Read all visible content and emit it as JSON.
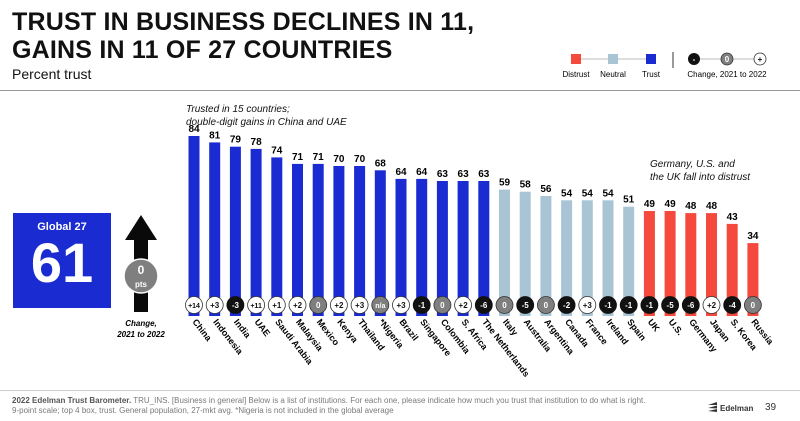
{
  "header": {
    "title_line1": "TRUST IN BUSINESS DECLINES IN 11,",
    "title_line2": "GAINS IN 11 OF 27 COUNTRIES",
    "subtitle": "Percent trust"
  },
  "legend": {
    "distrust": "Distrust",
    "neutral": "Neutral",
    "trust": "Trust",
    "change_label": "Change, 2021 to 2022",
    "change_minus": "-",
    "change_zero": "0",
    "change_plus": "+"
  },
  "global": {
    "label": "Global 27",
    "value": "61",
    "change_value": "0",
    "change_unit": "pts",
    "change_caption_line1": "Change,",
    "change_caption_line2": "2021 to 2022"
  },
  "annotations": {
    "left_line1": "Trusted in 15 countries;",
    "left_line2": "double-digit gains in China and UAE",
    "right_line1": "Germany, U.S. and",
    "right_line2": "the UK fall into distrust"
  },
  "colors": {
    "trust": "#1a2bd1",
    "neutral": "#a9c4d5",
    "distrust": "#f4493c",
    "change_negative": "#111111",
    "change_zero": "#7f7f7f",
    "change_positive": "#ffffff"
  },
  "chart_data": {
    "type": "bar",
    "ylim": [
      0,
      100
    ],
    "categories": [
      "China",
      "Indonesia",
      "India",
      "UAE",
      "Saudi Arabia",
      "Malaysia",
      "Mexico",
      "Kenya",
      "Thailand",
      "*Nigeria",
      "Brazil",
      "Singapore",
      "Colombia",
      "S. Africa",
      "The Netherlands",
      "Italy",
      "Australia",
      "Argentina",
      "Canada",
      "France",
      "Ireland",
      "Spain",
      "UK",
      "U.S.",
      "Germany",
      "Japan",
      "S. Korea",
      "Russia"
    ],
    "values": [
      84,
      81,
      79,
      78,
      74,
      71,
      71,
      70,
      70,
      68,
      64,
      64,
      63,
      63,
      63,
      59,
      58,
      56,
      54,
      54,
      54,
      51,
      49,
      49,
      48,
      48,
      43,
      34
    ],
    "labels": [
      "84",
      "81",
      "79",
      "78",
      "74",
      "71",
      "71",
      "70",
      "70",
      "68",
      "64",
      "64",
      "63",
      "63",
      "63",
      "59",
      "58",
      "56",
      "54",
      "54",
      "54",
      "51",
      "49",
      "49",
      "48",
      "48",
      "43",
      "34"
    ],
    "categories_class": [
      "trust",
      "trust",
      "trust",
      "trust",
      "trust",
      "trust",
      "trust",
      "trust",
      "trust",
      "trust",
      "trust",
      "trust",
      "trust",
      "trust",
      "trust",
      "neutral",
      "neutral",
      "neutral",
      "neutral",
      "neutral",
      "neutral",
      "neutral",
      "distrust",
      "distrust",
      "distrust",
      "distrust",
      "distrust",
      "distrust"
    ],
    "changes": [
      "+14",
      "+3",
      "-3",
      "+11",
      "+1",
      "+2",
      "0",
      "+2",
      "+3",
      "n/a",
      "+3",
      "-1",
      "0",
      "+2",
      "-6",
      "0",
      "-5",
      "0",
      "-2",
      "+3",
      "-1",
      "-1",
      "-1",
      "-5",
      "-6",
      "+2",
      "-4",
      "0"
    ]
  },
  "footer": {
    "source": "2022 Edelman Trust Barometer.",
    "text": "TRU_INS. [Business in general] Below is a list of institutions. For each one, please indicate how much you trust that institution to do what is right. 9-point scale; top 4 box, trust. General population, 27-mkt avg. *Nigeria is not included in the global average",
    "brand": "Edelman",
    "page": "39"
  }
}
